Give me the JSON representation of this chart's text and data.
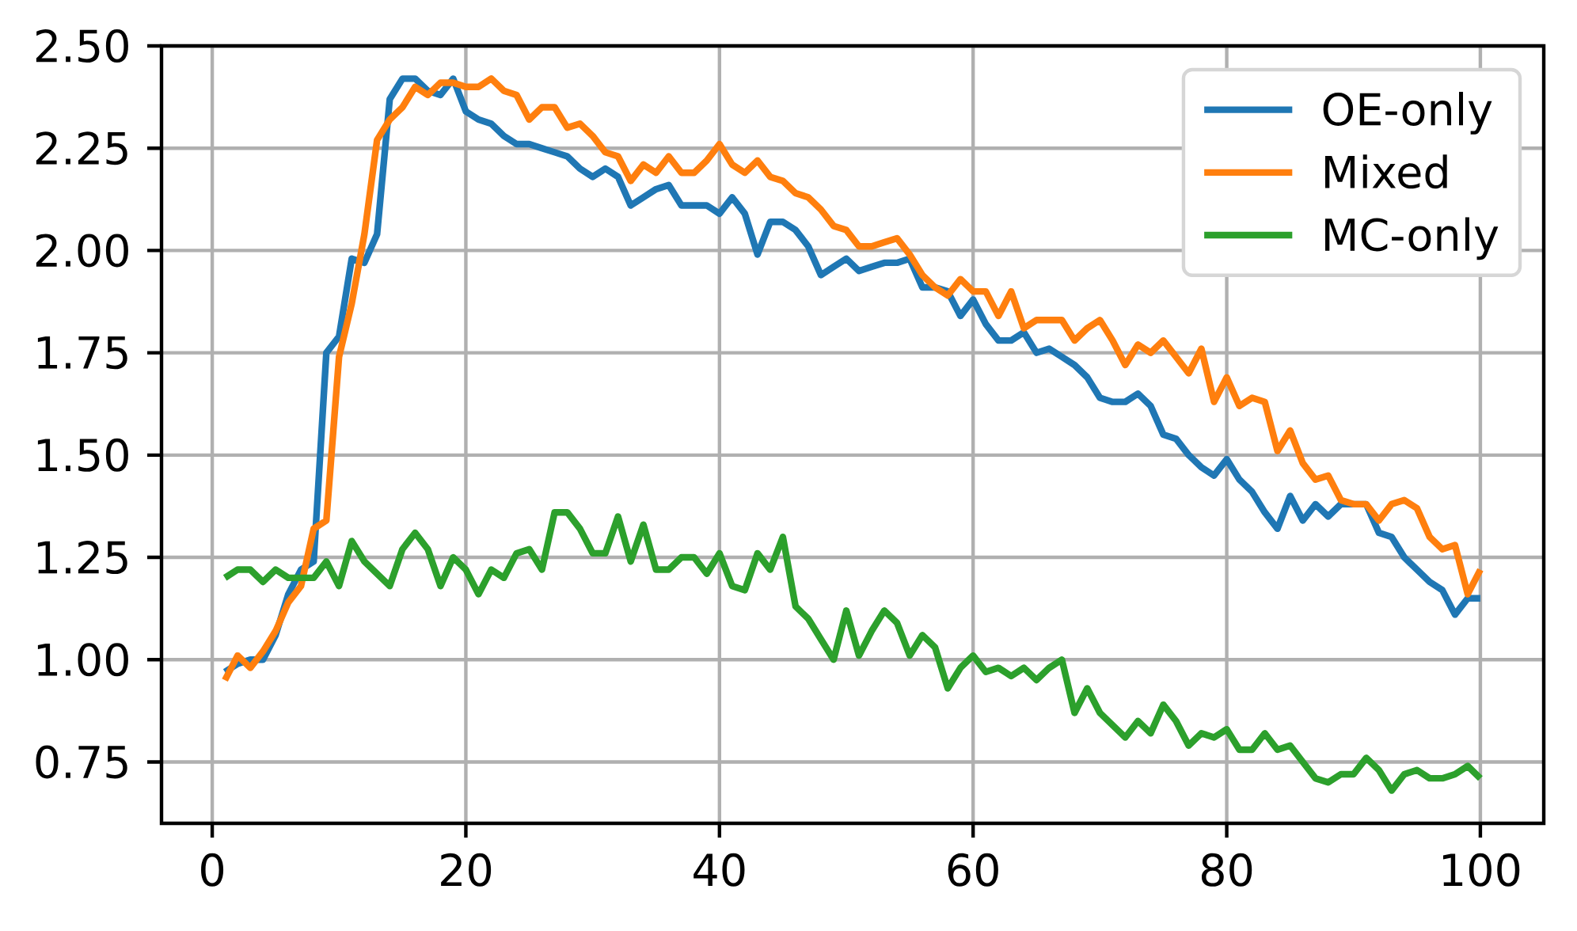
{
  "chart_data": {
    "type": "line",
    "x": [
      1,
      2,
      3,
      4,
      5,
      6,
      7,
      8,
      9,
      10,
      11,
      12,
      13,
      14,
      15,
      16,
      17,
      18,
      19,
      20,
      21,
      22,
      23,
      24,
      25,
      26,
      27,
      28,
      29,
      30,
      31,
      32,
      33,
      34,
      35,
      36,
      37,
      38,
      39,
      40,
      41,
      42,
      43,
      44,
      45,
      46,
      47,
      48,
      49,
      50,
      51,
      52,
      53,
      54,
      55,
      56,
      57,
      58,
      59,
      60,
      61,
      62,
      63,
      64,
      65,
      66,
      67,
      68,
      69,
      70,
      71,
      72,
      73,
      74,
      75,
      76,
      77,
      78,
      79,
      80,
      81,
      82,
      83,
      84,
      85,
      86,
      87,
      88,
      89,
      90,
      91,
      92,
      93,
      94,
      95,
      96,
      97,
      98,
      99,
      100
    ],
    "series": [
      {
        "name": "OE-only",
        "color": "#1f77b4",
        "values": [
          0.97,
          0.99,
          1.0,
          1.0,
          1.06,
          1.16,
          1.22,
          1.24,
          1.75,
          1.79,
          1.98,
          1.97,
          2.04,
          2.37,
          2.42,
          2.42,
          2.39,
          2.38,
          2.42,
          2.34,
          2.32,
          2.31,
          2.28,
          2.26,
          2.26,
          2.25,
          2.24,
          2.23,
          2.2,
          2.18,
          2.2,
          2.18,
          2.11,
          2.13,
          2.15,
          2.16,
          2.11,
          2.11,
          2.11,
          2.09,
          2.13,
          2.09,
          1.99,
          2.07,
          2.07,
          2.05,
          2.01,
          1.94,
          1.96,
          1.98,
          1.95,
          1.96,
          1.97,
          1.97,
          1.98,
          1.91,
          1.91,
          1.9,
          1.84,
          1.88,
          1.82,
          1.78,
          1.78,
          1.8,
          1.75,
          1.76,
          1.74,
          1.72,
          1.69,
          1.64,
          1.63,
          1.63,
          1.65,
          1.62,
          1.55,
          1.54,
          1.5,
          1.47,
          1.45,
          1.49,
          1.44,
          1.41,
          1.36,
          1.32,
          1.4,
          1.34,
          1.38,
          1.35,
          1.38,
          1.38,
          1.38,
          1.31,
          1.3,
          1.25,
          1.22,
          1.19,
          1.17,
          1.11,
          1.15,
          1.15
        ]
      },
      {
        "name": "Mixed",
        "color": "#ff7f0e",
        "values": [
          0.95,
          1.01,
          0.98,
          1.02,
          1.07,
          1.14,
          1.18,
          1.32,
          1.34,
          1.74,
          1.87,
          2.04,
          2.27,
          2.32,
          2.35,
          2.4,
          2.38,
          2.41,
          2.41,
          2.4,
          2.4,
          2.42,
          2.39,
          2.38,
          2.32,
          2.35,
          2.35,
          2.3,
          2.31,
          2.28,
          2.24,
          2.23,
          2.17,
          2.21,
          2.19,
          2.23,
          2.19,
          2.19,
          2.22,
          2.26,
          2.21,
          2.19,
          2.22,
          2.18,
          2.17,
          2.14,
          2.13,
          2.1,
          2.06,
          2.05,
          2.01,
          2.01,
          2.02,
          2.03,
          1.99,
          1.94,
          1.91,
          1.89,
          1.93,
          1.9,
          1.9,
          1.84,
          1.9,
          1.81,
          1.83,
          1.83,
          1.83,
          1.78,
          1.81,
          1.83,
          1.78,
          1.72,
          1.77,
          1.75,
          1.78,
          1.74,
          1.7,
          1.76,
          1.63,
          1.69,
          1.62,
          1.64,
          1.63,
          1.51,
          1.56,
          1.48,
          1.44,
          1.45,
          1.39,
          1.38,
          1.38,
          1.34,
          1.38,
          1.39,
          1.37,
          1.3,
          1.27,
          1.28,
          1.16,
          1.22
        ]
      },
      {
        "name": "MC-only",
        "color": "#2ca02c",
        "values": [
          1.2,
          1.22,
          1.22,
          1.19,
          1.22,
          1.2,
          1.2,
          1.2,
          1.24,
          1.18,
          1.29,
          1.24,
          1.21,
          1.18,
          1.27,
          1.31,
          1.27,
          1.18,
          1.25,
          1.22,
          1.16,
          1.22,
          1.2,
          1.26,
          1.27,
          1.22,
          1.36,
          1.36,
          1.32,
          1.26,
          1.26,
          1.35,
          1.24,
          1.33,
          1.22,
          1.22,
          1.25,
          1.25,
          1.21,
          1.26,
          1.18,
          1.17,
          1.26,
          1.22,
          1.3,
          1.13,
          1.1,
          1.05,
          1.0,
          1.12,
          1.01,
          1.07,
          1.12,
          1.09,
          1.01,
          1.06,
          1.03,
          0.93,
          0.98,
          1.01,
          0.97,
          0.98,
          0.96,
          0.98,
          0.95,
          0.98,
          1.0,
          0.87,
          0.93,
          0.87,
          0.84,
          0.81,
          0.85,
          0.82,
          0.89,
          0.85,
          0.79,
          0.82,
          0.81,
          0.83,
          0.78,
          0.78,
          0.82,
          0.78,
          0.79,
          0.75,
          0.71,
          0.7,
          0.72,
          0.72,
          0.76,
          0.73,
          0.68,
          0.72,
          0.73,
          0.71,
          0.71,
          0.72,
          0.74,
          0.71
        ]
      }
    ],
    "xlim": [
      -4,
      105
    ],
    "ylim": [
      0.6,
      2.5
    ],
    "xticks": [
      0,
      20,
      40,
      60,
      80,
      100
    ],
    "yticks": [
      0.75,
      {
        "value": 1,
        "label": "1.00"
      },
      1.25,
      {
        "value": 1.5,
        "label": "1.50"
      },
      1.75,
      {
        "value": 2,
        "label": "2.00"
      },
      2.25,
      {
        "value": 2.5,
        "label": "2.50"
      }
    ],
    "grid": true,
    "legend": "top right"
  }
}
